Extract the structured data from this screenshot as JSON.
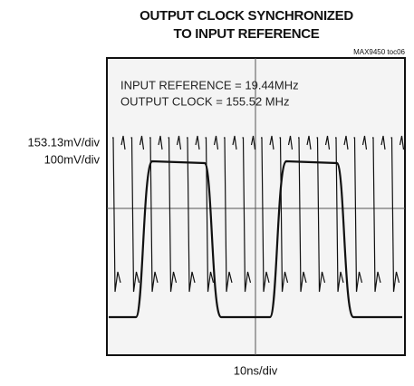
{
  "header": {
    "title_lines": [
      "OUTPUT CLOCK SYNCHRONIZED",
      "TO INPUT REFERENCE"
    ],
    "figure_id": "MAX9450 toc06"
  },
  "annotations": [
    "INPUT REFERENCE = 19.44MHz",
    "OUTPUT CLOCK = 155.52 MHz"
  ],
  "scales": {
    "vertical": [
      "153.13mV/div",
      "100mV/div"
    ],
    "horizontal": "10ns/div"
  }
}
